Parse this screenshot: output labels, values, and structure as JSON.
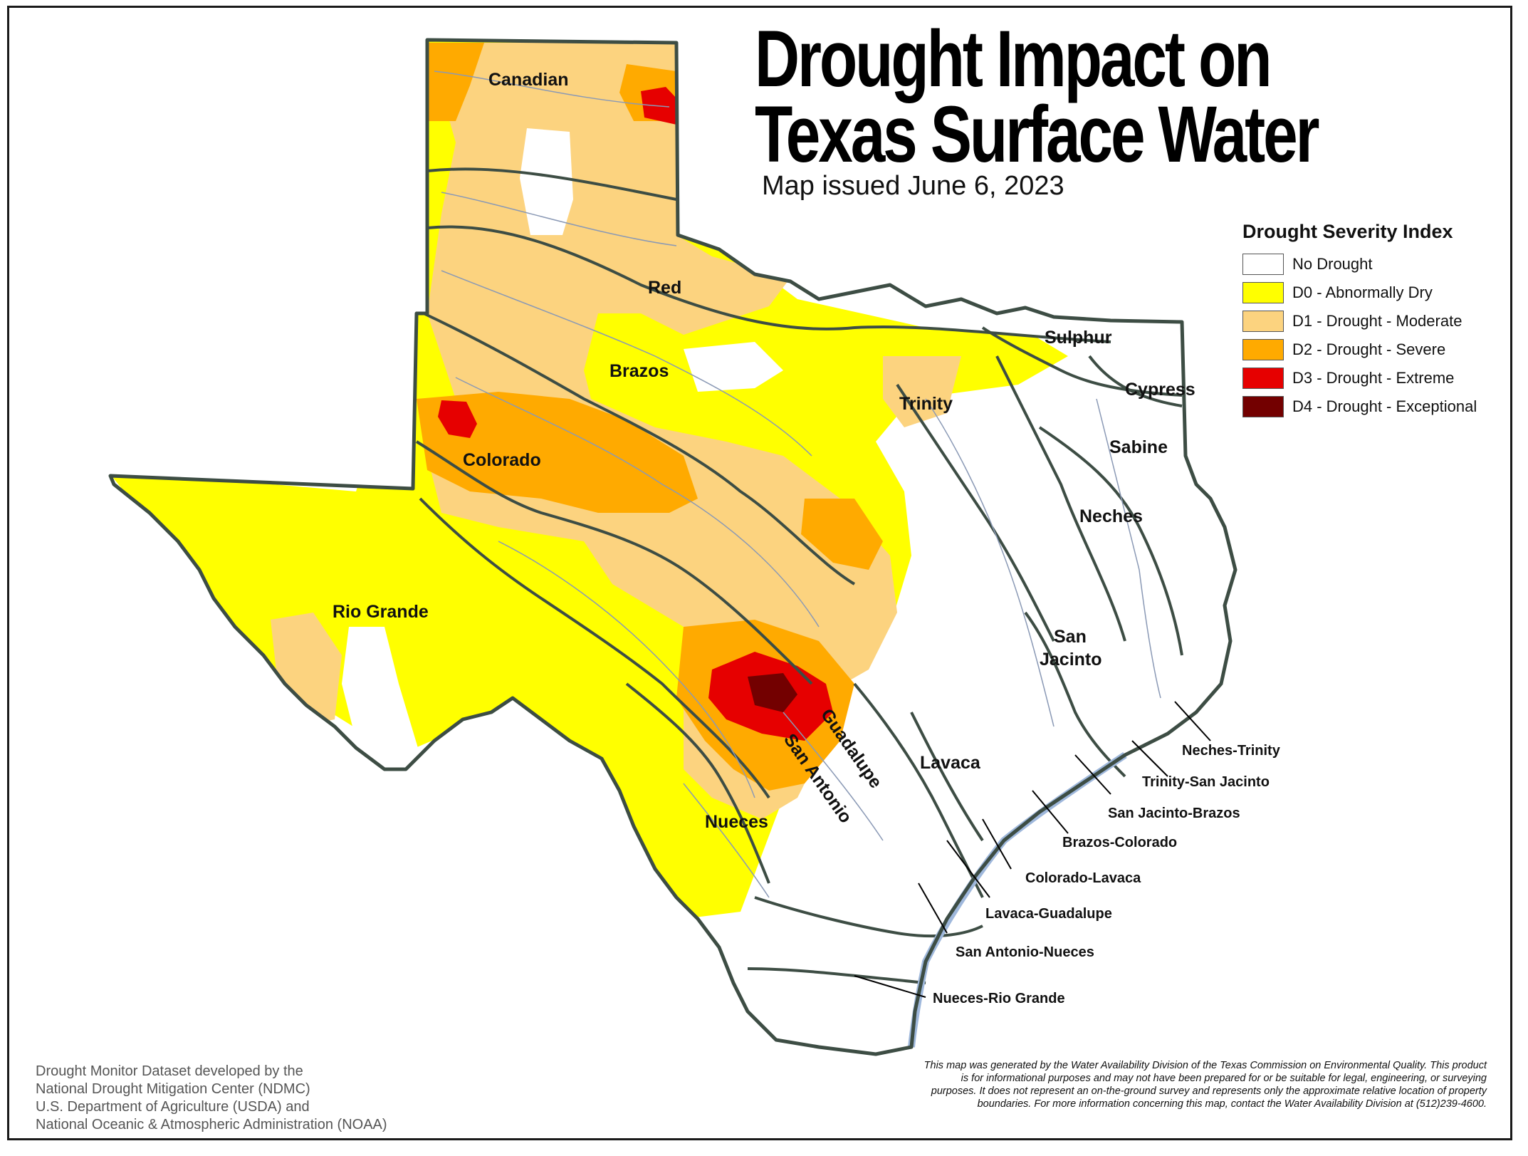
{
  "title_line1": "Drought Impact on",
  "title_line2": "Texas Surface Water",
  "subtitle": "Map issued June 6, 2023",
  "legend": {
    "title": "Drought Severity Index",
    "items": [
      {
        "label": "No Drought",
        "color": "#ffffff"
      },
      {
        "label": "D0 - Abnormally Dry",
        "color": "#ffff00"
      },
      {
        "label": "D1 - Drought - Moderate",
        "color": "#fcd37f"
      },
      {
        "label": "D2 - Drought - Severe",
        "color": "#ffaa00"
      },
      {
        "label": "D3 - Drought - Extreme",
        "color": "#e60000"
      },
      {
        "label": "D4 - Drought - Exceptional",
        "color": "#730000"
      }
    ]
  },
  "basins": {
    "canadian": "Canadian",
    "red": "Red",
    "brazos": "Brazos",
    "colorado": "Colorado",
    "rio_grande": "Rio Grande",
    "sulphur": "Sulphur",
    "cypress": "Cypress",
    "trinity": "Trinity",
    "sabine": "Sabine",
    "neches": "Neches",
    "san_jacinto_1": "San",
    "san_jacinto_2": "Jacinto",
    "lavaca": "Lavaca",
    "guadalupe": "Guadalupe",
    "san_antonio": "San Antonio",
    "nueces": "Nueces"
  },
  "coastal_basins": {
    "neches_trinity": "Neches-Trinity",
    "trinity_san_jacinto": "Trinity-San Jacinto",
    "san_jacinto_brazos": "San Jacinto-Brazos",
    "brazos_colorado": "Brazos-Colorado",
    "colorado_lavaca": "Colorado-Lavaca",
    "lavaca_guadalupe": "Lavaca-Guadalupe",
    "san_antonio_nueces": "San Antonio-Nueces",
    "nueces_rio_grande": "Nueces-Rio Grande"
  },
  "credit": [
    "Drought Monitor Dataset developed by the",
    "National Drought Mitigation Center (NDMC)",
    "U.S. Department of Agriculture (USDA) and",
    "National Oceanic & Atmospheric Administration (NOAA)"
  ],
  "disclaimer": "This map was generated by the Water Availability Division of the Texas Commission on Environmental Quality. This product is for informational purposes and may not have been prepared for or be suitable for legal, engineering, or surveying purposes. It does not represent an on-the-ground survey and represents only the approximate relative location of property boundaries. For more information concerning this map, contact the Water Availability Division at (512)239-4600.",
  "colors": {
    "border": "#3d4d44",
    "water": "#9fb8dc",
    "river": "#8a99b5"
  }
}
